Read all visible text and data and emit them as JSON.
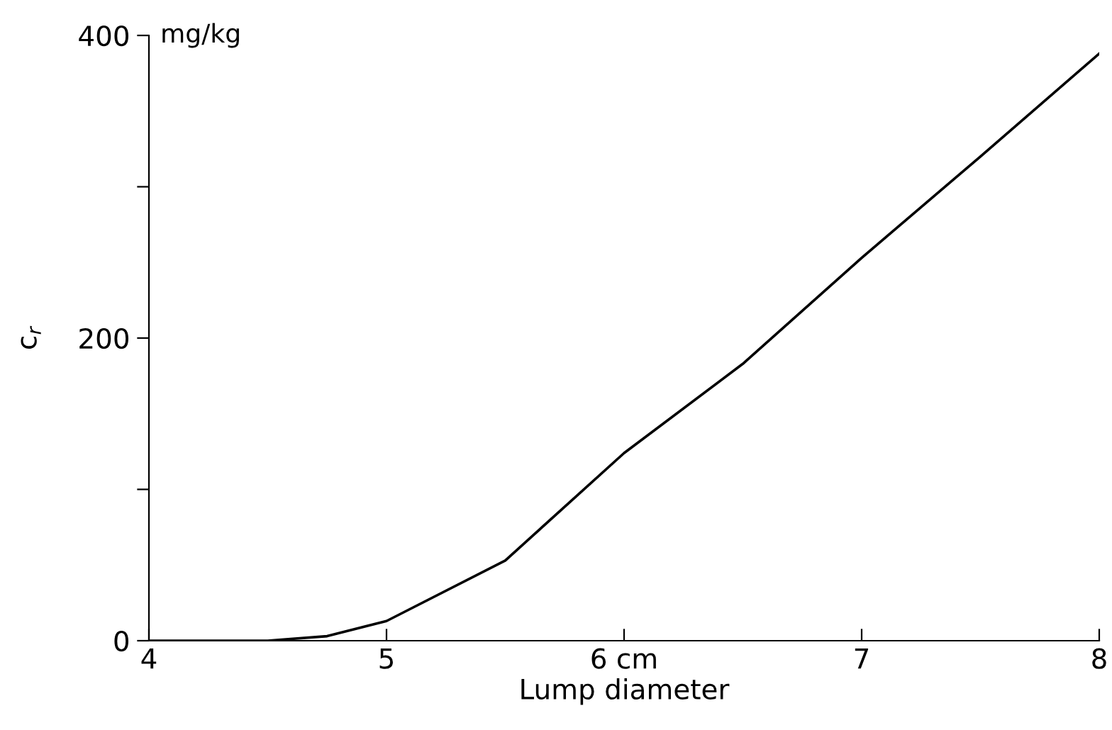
{
  "chart_data": {
    "type": "line",
    "xlabel": "Lump diameter",
    "ylabel": "c$_{r}$",
    "annotations": [
      "mg/kg"
    ],
    "x": [
      4,
      4.5,
      4.75,
      5,
      5.5,
      6,
      6.5,
      7,
      7.5,
      8
    ],
    "series": [
      {
        "color": "#000000",
        "values": [
          0,
          0,
          3,
          13,
          53,
          124,
          183,
          253,
          320,
          388
        ]
      }
    ],
    "xlim": [
      4,
      8
    ],
    "ylim": [
      0,
      400
    ],
    "xticks": [
      4,
      5,
      {
        "value": 6,
        "label": "6 cm"
      },
      7,
      8
    ],
    "yticks": [
      0,
      {
        "value": 100,
        "label": null
      },
      200,
      {
        "value": 300,
        "label": null
      },
      400
    ],
    "grid": false,
    "legend": false,
    "marker": "none",
    "line_style": "solid"
  }
}
